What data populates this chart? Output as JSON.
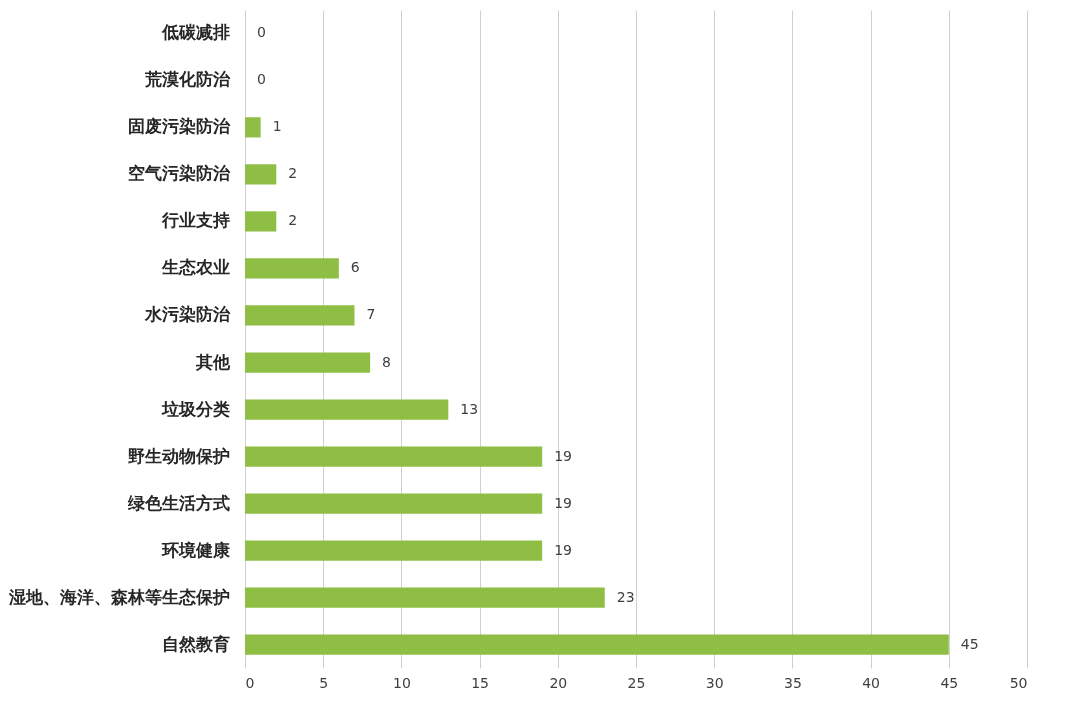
{
  "chart_data": {
    "type": "bar",
    "orientation": "horizontal",
    "categories": [
      "低碳减排",
      "荒漠化防治",
      "固废污染防治",
      "空气污染防治",
      "行业支持",
      "生态农业",
      "水污染防治",
      "其他",
      "垃圾分类",
      "野生动物保护",
      "绿色生活方式",
      "环境健康",
      "湿地、海洋、森林等生态保护",
      "自然教育"
    ],
    "values": [
      0,
      0,
      1,
      2,
      2,
      6,
      7,
      8,
      13,
      19,
      19,
      19,
      23,
      45
    ],
    "color": "#8fbe45",
    "xlim": [
      0,
      50
    ],
    "xticks": [
      0,
      5,
      10,
      15,
      20,
      25,
      30,
      35,
      40,
      45,
      50
    ],
    "grid": "x",
    "data_labels": true
  }
}
